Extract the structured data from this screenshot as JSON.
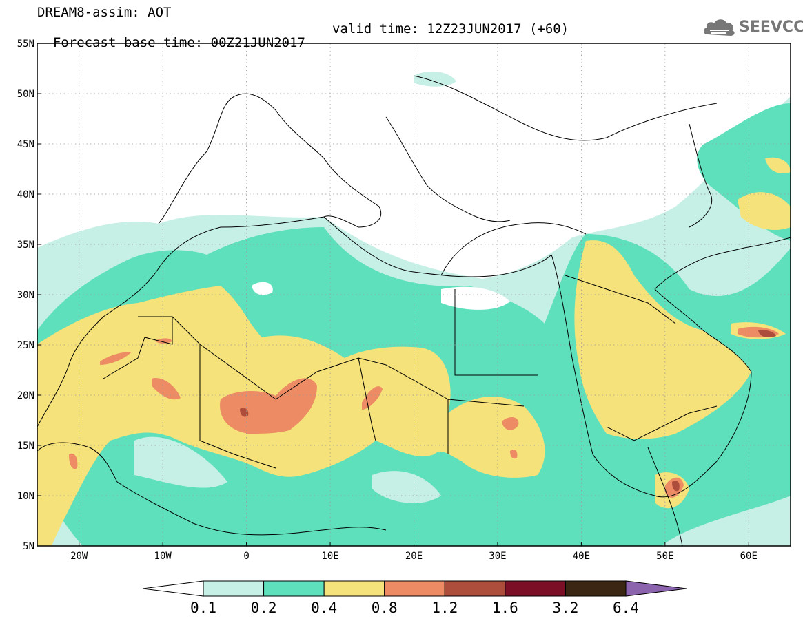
{
  "header": {
    "line1": "DREAM8-assim: AOT",
    "base_time": "Forecast base time: 00Z21JUN2017",
    "valid_time": "valid time: 12Z23JUN2017 (+60)"
  },
  "logo": {
    "text": "SEEVCCC",
    "icon": "cloud-icon"
  },
  "map": {
    "lon_range": [
      -25,
      65
    ],
    "lat_range": [
      5,
      55
    ],
    "lat_labels": [
      "55N",
      "50N",
      "45N",
      "40N",
      "35N",
      "30N",
      "25N",
      "20N",
      "15N",
      "10N",
      "5N"
    ],
    "lat_values": [
      55,
      50,
      45,
      40,
      35,
      30,
      25,
      20,
      15,
      10,
      5
    ],
    "lon_labels": [
      "20W",
      "10W",
      "0",
      "10E",
      "20E",
      "30E",
      "40E",
      "50E",
      "60E"
    ],
    "lon_values": [
      -20,
      -10,
      0,
      10,
      20,
      30,
      40,
      50,
      60
    ],
    "variable": "AOT"
  },
  "colorbar": {
    "labels": [
      "0.1",
      "0.2",
      "0.4",
      "0.8",
      "1.2",
      "1.6",
      "3.2",
      "6.4"
    ],
    "colors": [
      "#ffffff",
      "#c6efe6",
      "#5ee0bc",
      "#f5e27a",
      "#ec8b64",
      "#ad4d3c",
      "#7a0f26",
      "#3a2612",
      "#8c64ae"
    ],
    "extend": "both"
  }
}
